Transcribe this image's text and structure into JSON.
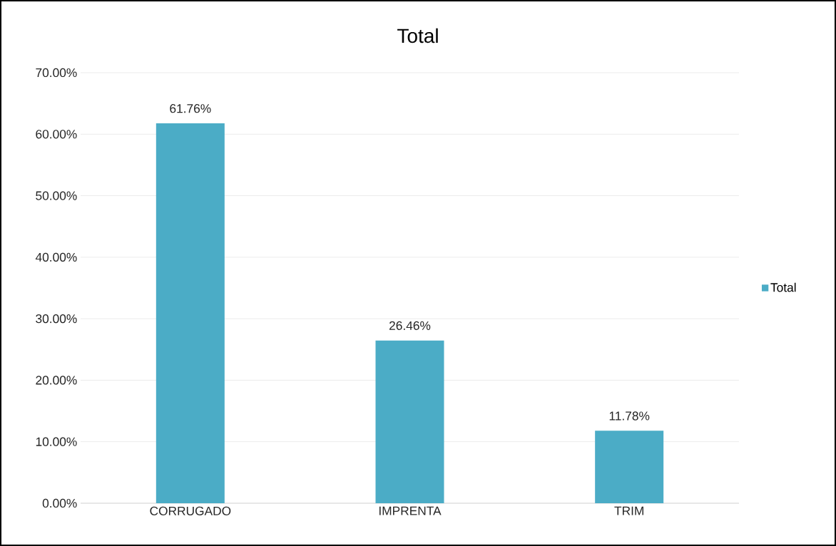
{
  "chart_data": {
    "type": "bar",
    "title": "Total",
    "categories": [
      "CORRUGADO",
      "IMPRENTA",
      "TRIM"
    ],
    "series": [
      {
        "name": "Total",
        "color": "#4bacc6",
        "values": [
          61.76,
          26.46,
          11.78
        ],
        "value_labels": [
          "61.76%",
          "26.46%",
          "11.78%"
        ]
      }
    ],
    "ylim": [
      0,
      70
    ],
    "yticks": [
      {
        "value": 0,
        "label": "0.00%"
      },
      {
        "value": 10,
        "label": "10.00%"
      },
      {
        "value": 20,
        "label": "20.00%"
      },
      {
        "value": 30,
        "label": "30.00%"
      },
      {
        "value": 40,
        "label": "40.00%"
      },
      {
        "value": 50,
        "label": "50.00%"
      },
      {
        "value": 60,
        "label": "60.00%"
      },
      {
        "value": 70,
        "label": "70.00%"
      }
    ],
    "grid": "y",
    "legend": "right"
  }
}
